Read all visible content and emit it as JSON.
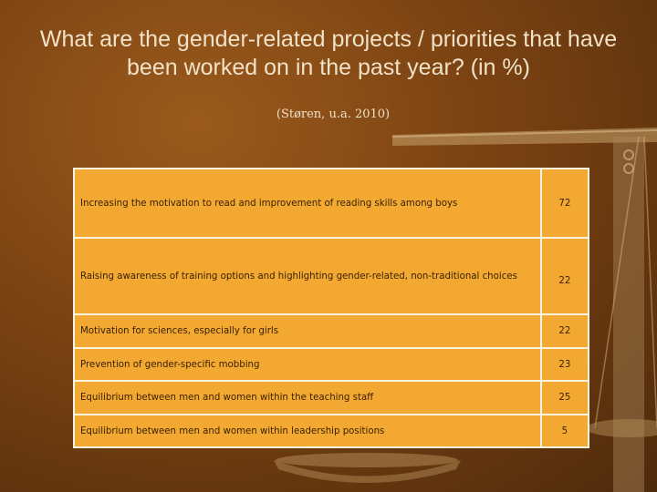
{
  "slide": {
    "title": "What are the gender-related projects / priorities that have been worked on in the past year? (in %)",
    "subtitle": "(Støren, u.a. 2010)"
  },
  "table": {
    "rows": [
      {
        "label": "Increasing the motivation to read and improvement of reading skills among boys",
        "value": "72"
      },
      {
        "label": "Raising awareness of training options and highlighting gender-related, non-traditional choices",
        "value": "22"
      },
      {
        "label": "Motivation for sciences, especially for girls",
        "value": "22"
      },
      {
        "label": "Prevention of gender-specific mobbing",
        "value": "23"
      },
      {
        "label": "Equilibrium between men and women within the teaching staff",
        "value": "25"
      },
      {
        "label": "Equilibrium between men and women within leadership positions",
        "value": "5"
      }
    ]
  }
}
